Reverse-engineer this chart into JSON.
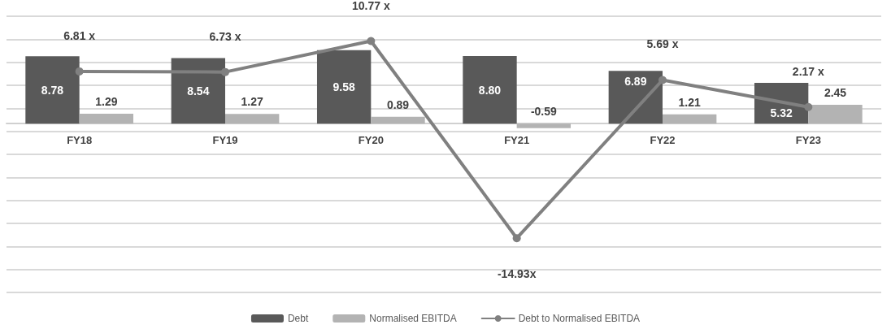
{
  "chart_data": {
    "type": "bar",
    "categories": [
      "FY18",
      "FY19",
      "FY20",
      "FY21",
      "FY22",
      "FY23"
    ],
    "series": [
      {
        "name": "Debt",
        "color": "#595959",
        "values": [
          8.78,
          8.54,
          9.58,
          8.8,
          6.89,
          5.32
        ],
        "value_labels": [
          "8.78",
          "8.54",
          "9.58",
          "8.80",
          "6.89",
          "5.32"
        ]
      },
      {
        "name": "Normalised EBITDA",
        "color": "#b3b3b3",
        "values": [
          1.29,
          1.27,
          0.89,
          -0.59,
          1.21,
          2.45
        ],
        "value_labels": [
          "1.29",
          "1.27",
          "0.89",
          "-0.59",
          "1.21",
          "2.45"
        ]
      },
      {
        "name": "Debt to Normalised EBITDA",
        "type": "line",
        "color": "#808080",
        "values": [
          6.81,
          6.73,
          10.77,
          -14.93,
          5.69,
          2.17
        ],
        "value_labels": [
          "6.81 x",
          "6.73 x",
          "10.77 x",
          "-14.93x",
          "5.69 x",
          "2.17 x"
        ]
      }
    ],
    "ylim": [
      -22,
      14
    ],
    "yticks": [
      {
        "value": 14,
        "label": null
      },
      {
        "value": 11,
        "label": null
      },
      {
        "value": 8,
        "label": null
      },
      {
        "value": 5,
        "label": null
      },
      {
        "value": 2,
        "label": null
      },
      {
        "value": -1,
        "label": null
      },
      {
        "value": -4,
        "label": null
      },
      {
        "value": -7,
        "label": null
      },
      {
        "value": -10,
        "label": null
      },
      {
        "value": -13,
        "label": null
      },
      {
        "value": -16,
        "label": null
      },
      {
        "value": -19,
        "label": null
      },
      {
        "value": -22,
        "label": null
      }
    ],
    "tick_labels": "x",
    "grid": "y",
    "legend": "bottom",
    "marker": "circle",
    "line_style": "solid"
  }
}
